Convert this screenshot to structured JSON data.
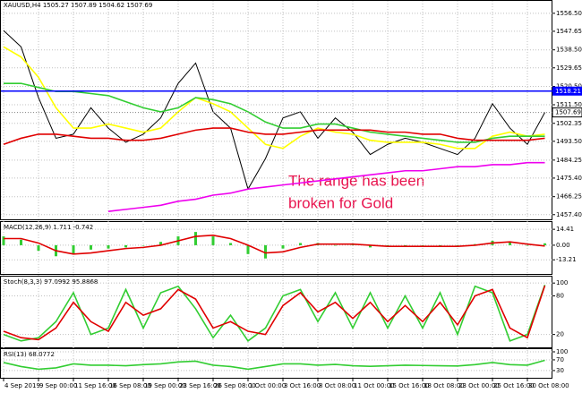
{
  "chart_data": [
    {
      "type": "line",
      "title": "XAUUSD,H4 1505.27 1507.89 1504.62 1507.69",
      "annotation": [
        "The range has been",
        "broken for Gold"
      ],
      "categories": [
        "4 Sep 2019",
        null,
        "9 Sep 00:00",
        null,
        "11 Sep 16:00",
        null,
        "16 Sep 08:00",
        null,
        "19 Sep 00:00",
        null,
        "23 Sep 16:00",
        null,
        "26 Sep 08:00",
        null,
        "1 Oct 00:00",
        null,
        "3 Oct 16:00",
        null,
        "8 Oct 08:00",
        null,
        "11 Oct 00:00",
        null,
        "15 Oct 16:00",
        null,
        "18 Oct 08:00",
        null,
        "23 Oct 00:00",
        null,
        "25 Oct 16:00",
        null,
        "30 Oct 08:00",
        null
      ],
      "series": [
        {
          "color": "#000000",
          "values": [
            1548,
            1540,
            1515,
            1495,
            1497,
            1510,
            1500,
            1493,
            1497,
            1505,
            1522,
            1532,
            1508,
            1500,
            1470,
            1485,
            1505,
            1508,
            1495,
            1505,
            1498,
            1487,
            1492,
            1495,
            1493,
            1490,
            1487,
            1495,
            1512,
            1500,
            1492,
            1507.69
          ]
        },
        {
          "color": "#ffff00",
          "values": [
            1540,
            1535,
            1525,
            1510,
            1500,
            1500,
            1502,
            1500,
            1498,
            1500,
            1508,
            1515,
            1512,
            1508,
            1500,
            1492,
            1490,
            1496,
            1500,
            1498,
            1497,
            1494,
            1493,
            1493,
            1493,
            1492,
            1490,
            1490,
            1496,
            1498,
            1496,
            1497
          ]
        },
        {
          "color": "#32cd32",
          "values": [
            1522,
            1522,
            1520,
            1518,
            1518,
            1517,
            1516,
            1513,
            1510,
            1508,
            1510,
            1515,
            1514,
            1512,
            1508,
            1503,
            1500,
            1500,
            1502,
            1502,
            1500,
            1498,
            1497,
            1496,
            1495,
            1494,
            1493,
            1493,
            1495,
            1496,
            1496,
            1496
          ]
        },
        {
          "color": "#e00000",
          "values": [
            1492,
            1495,
            1497,
            1497,
            1496,
            1495,
            1495,
            1494,
            1494,
            1495,
            1497,
            1499,
            1500,
            1500,
            1498,
            1497,
            1497,
            1498,
            1499,
            1499,
            1499,
            1499,
            1498,
            1498,
            1497,
            1497,
            1495,
            1494,
            1494,
            1494,
            1494,
            1495
          ]
        },
        {
          "color": "#ee00ee",
          "values": [
            null,
            null,
            null,
            null,
            null,
            null,
            1459,
            1460,
            1461,
            1462,
            1464,
            1465,
            1467,
            1468,
            1470,
            1471,
            1472,
            1473,
            1474,
            1475,
            1476,
            1477,
            1478,
            1479,
            1479,
            1480,
            1481,
            1481,
            1482,
            1482,
            1483,
            1483
          ]
        }
      ],
      "hline": 1518.21,
      "hline_color": "#0000ff",
      "last_price": 1507.69,
      "ylim": [
        1455.1,
        1562.6
      ],
      "yticks": [
        {
          "value": 1556.5,
          "label": "1556.50"
        },
        1547.65,
        {
          "value": 1538.5,
          "label": "1538.50"
        },
        1529.65,
        {
          "value": 1520.5,
          "label": "1520.50"
        },
        {
          "value": 1511.5,
          "label": "1511.50"
        },
        1502.35,
        {
          "value": 1493.5,
          "label": "1493.50"
        },
        1484.25,
        {
          "value": 1475.4,
          "label": "1475.40"
        },
        1466.25,
        {
          "value": 1457.4,
          "label": "1457.40"
        }
      ],
      "grid": true
    },
    {
      "type": "bar",
      "title": "MACD(12,26,9) 1.711 -0.742",
      "color": "#32cd32",
      "values": [
        8,
        5,
        -5,
        -10,
        -8,
        -4,
        -3,
        -2,
        0,
        3,
        8,
        12,
        8,
        2,
        -8,
        -12,
        -3,
        2,
        2,
        0,
        1,
        -2,
        -1,
        -1,
        0,
        -1,
        0,
        1,
        4,
        3,
        0,
        1.711
      ],
      "series": [
        {
          "color": "#e00000",
          "values": [
            6,
            6,
            2,
            -5,
            -8,
            -7,
            -5,
            -3,
            -2,
            0,
            4,
            8,
            9,
            6,
            0,
            -7,
            -6,
            -2,
            1,
            1,
            1,
            0,
            -1,
            -1,
            -1,
            -1,
            -1,
            0,
            2,
            3,
            1,
            -0.742
          ]
        }
      ],
      "ylim": [
        -26,
        21
      ],
      "yticks": [
        14.41,
        {
          "value": 0,
          "label": "0.00"
        },
        -13.21
      ],
      "grid": true
    },
    {
      "type": "line",
      "title": "Stoch(8,3,3) 97.0992 95.8868",
      "series": [
        {
          "color": "#32cd32",
          "values": [
            20,
            10,
            15,
            40,
            85,
            20,
            30,
            90,
            30,
            85,
            95,
            60,
            15,
            50,
            10,
            30,
            80,
            90,
            40,
            85,
            30,
            85,
            30,
            80,
            30,
            85,
            20,
            95,
            85,
            10,
            20,
            97.0992
          ]
        },
        {
          "color": "#e00000",
          "values": [
            25,
            15,
            12,
            30,
            70,
            40,
            25,
            70,
            50,
            60,
            90,
            75,
            30,
            40,
            25,
            20,
            65,
            85,
            55,
            70,
            45,
            70,
            40,
            65,
            40,
            70,
            35,
            80,
            90,
            30,
            15,
            95.8868
          ]
        }
      ],
      "ylim": [
        0,
        110
      ],
      "yticks": [
        100,
        80,
        20
      ],
      "grid": true
    },
    {
      "type": "line",
      "title": "RSI(13) 68.0772",
      "series": [
        {
          "color": "#32cd32",
          "values": [
            60,
            45,
            35,
            40,
            55,
            50,
            50,
            48,
            52,
            55,
            62,
            65,
            50,
            45,
            35,
            45,
            55,
            55,
            50,
            53,
            48,
            46,
            48,
            50,
            49,
            48,
            47,
            52,
            60,
            52,
            50,
            68.0772
          ]
        }
      ],
      "ylim": [
        3,
        110
      ],
      "yticks": [
        100,
        70,
        30
      ],
      "grid": true
    }
  ]
}
